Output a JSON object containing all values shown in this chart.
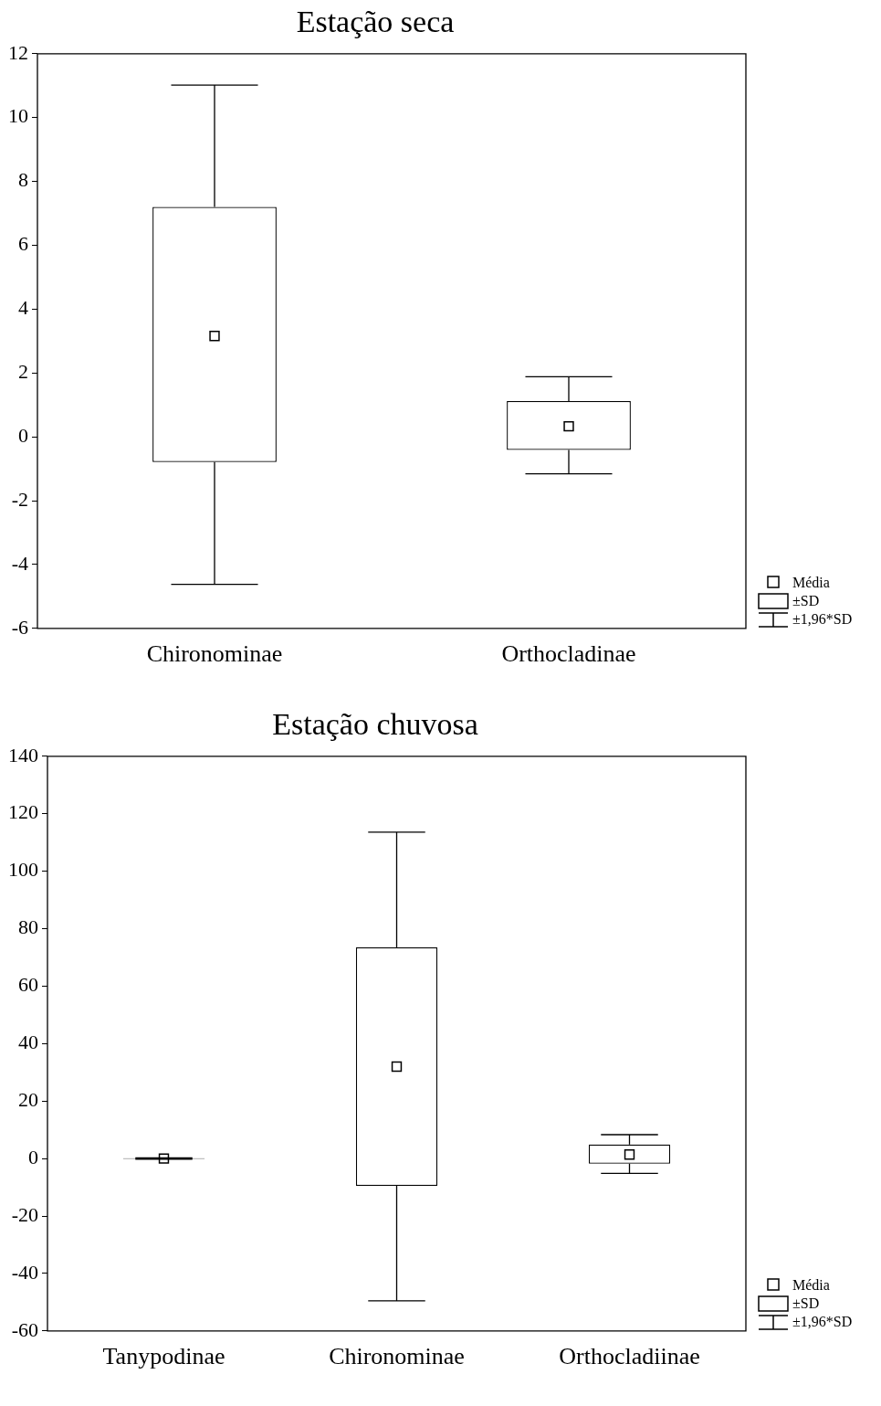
{
  "chart_data": [
    {
      "type": "box",
      "title": "Estação seca",
      "categories": [
        "Chironominae",
        "Orthocladinae"
      ],
      "boxes": [
        {
          "low": -4.62,
          "q1": -0.79,
          "q3": 7.2,
          "high": 11.02,
          "mean": 3.16
        },
        {
          "low": -1.16,
          "q1": -0.41,
          "q3": 1.12,
          "high": 1.88,
          "mean": 0.33
        }
      ],
      "ylim": [
        -6,
        12
      ],
      "yticks": [
        -6,
        -4,
        -2,
        0,
        2,
        4,
        6,
        8,
        10,
        12
      ],
      "marker": "square",
      "annotations": [
        "Média",
        "±SD",
        "±1,96*SD"
      ]
    },
    {
      "type": "box",
      "title": "Estação chuvosa",
      "categories": [
        "Tanypodinae",
        "Chironominae",
        "Orthocladiinae"
      ],
      "boxes": [
        {
          "low": -0.2,
          "q1": -0.1,
          "q3": 0.1,
          "high": 0.2,
          "mean": 0
        },
        {
          "low": -49.5,
          "q1": -9.5,
          "q3": 73.5,
          "high": 113.6,
          "mean": 32
        },
        {
          "low": -5.2,
          "q1": -1.8,
          "q3": 4.9,
          "high": 8.3,
          "mean": 1.4
        }
      ],
      "ylim": [
        -60,
        140
      ],
      "yticks": [
        -60,
        -40,
        -20,
        0,
        20,
        40,
        60,
        80,
        100,
        120,
        140
      ],
      "marker": "square",
      "annotations": [
        "Média",
        "±SD",
        "±1,96*SD"
      ]
    }
  ]
}
